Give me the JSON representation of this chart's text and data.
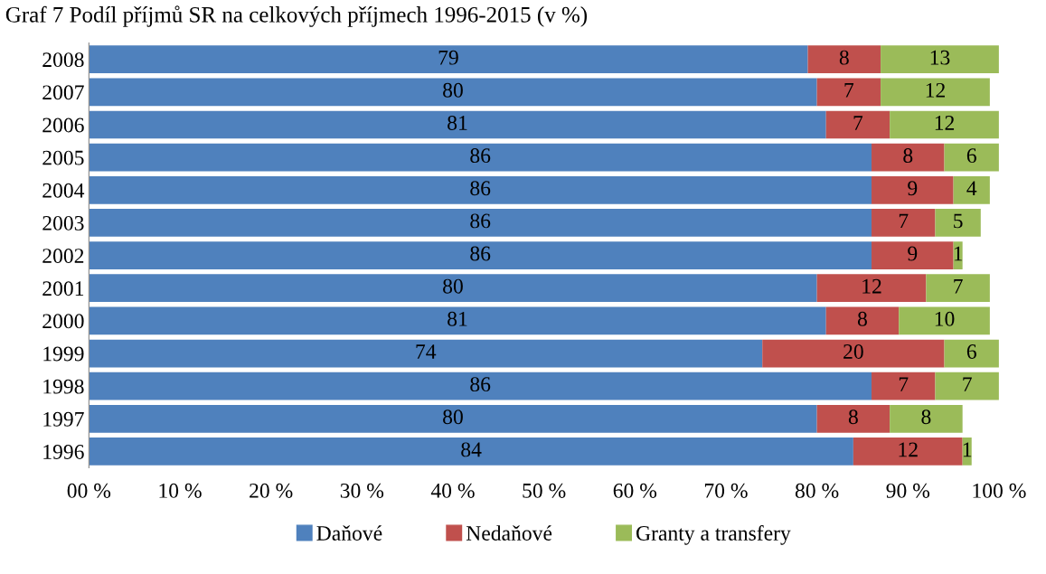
{
  "chart_data": {
    "type": "bar",
    "orientation": "horizontal",
    "stacked": true,
    "title": "Graf 7 Podíl příjmů SR na celkových příjmech 1996-2015 (v %)",
    "categories": [
      "2008",
      "2007",
      "2006",
      "2005",
      "2004",
      "2003",
      "2002",
      "2001",
      "2000",
      "1999",
      "1998",
      "1997",
      "1996"
    ],
    "series": [
      {
        "name": "Daňové",
        "color": "#4f81bd",
        "values": [
          79,
          80,
          81,
          86,
          86,
          86,
          86,
          80,
          81,
          74,
          86,
          80,
          84
        ]
      },
      {
        "name": "Nedaňové",
        "color": "#c0504d",
        "values": [
          8,
          7,
          7,
          8,
          9,
          7,
          9,
          12,
          8,
          20,
          7,
          8,
          12
        ]
      },
      {
        "name": "Granty a transfery",
        "color": "#9bbb59",
        "values": [
          13,
          12,
          12,
          6,
          4,
          5,
          1,
          7,
          10,
          6,
          7,
          8,
          1
        ]
      }
    ],
    "xlim": [
      0,
      100
    ],
    "xticks": [
      {
        "value": 0,
        "label": "00 %"
      },
      {
        "value": 10,
        "label": "10 %"
      },
      {
        "value": 20,
        "label": "20 %"
      },
      {
        "value": 30,
        "label": "30 %"
      },
      {
        "value": 40,
        "label": "40 %"
      },
      {
        "value": 50,
        "label": "50 %"
      },
      {
        "value": 60,
        "label": "60 %"
      },
      {
        "value": 70,
        "label": "70 %"
      },
      {
        "value": 80,
        "label": "80 %"
      },
      {
        "value": 90,
        "label": "90 %"
      },
      {
        "value": 100,
        "label": "100 %"
      }
    ],
    "data_labels": true,
    "legend": "bottom",
    "grid": false
  }
}
